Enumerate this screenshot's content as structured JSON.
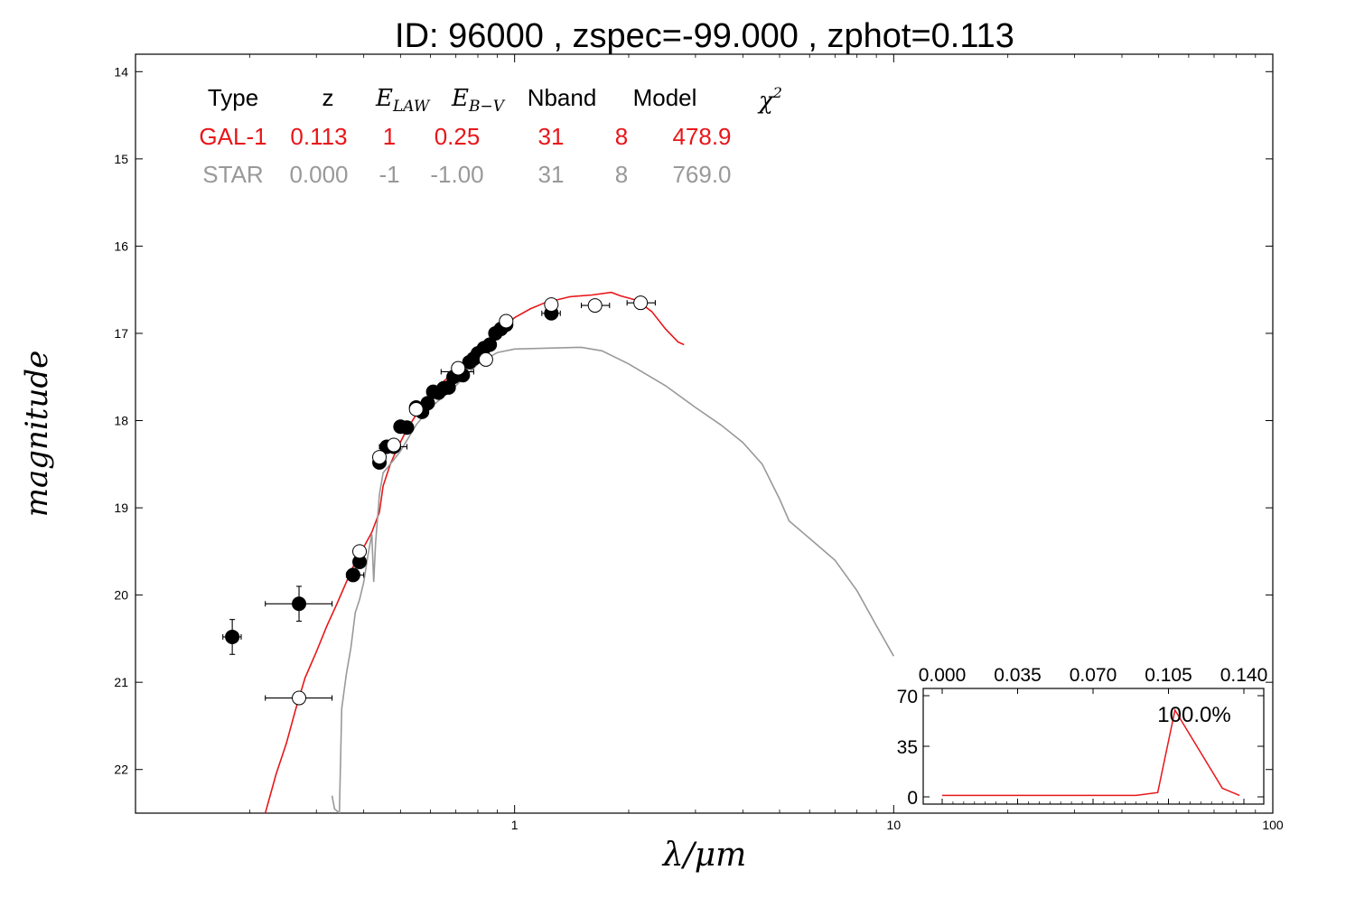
{
  "chart_data": [
    {
      "type": "scatter",
      "title": "ID:  96000 , zspec=-99.000 , zphot=0.113",
      "xlabel": "λ/μm",
      "ylabel": "magnitude",
      "xscale": "log",
      "xlim": [
        0.1,
        100
      ],
      "ylim": [
        22.5,
        13.8
      ],
      "y_inverted": true,
      "x_ticks": [
        "1",
        "10",
        "100"
      ],
      "y_ticks": [
        "14",
        "15",
        "16",
        "17",
        "18",
        "19",
        "20",
        "21",
        "22"
      ],
      "grid": false,
      "table": {
        "headers": [
          "Type",
          "z",
          "E_LAW",
          "E_B−V",
          "Nband",
          "Model",
          "χ²"
        ],
        "rows": [
          {
            "name": "GAL-1",
            "color": "#e8161a",
            "cells": [
              "GAL-1",
              "0.113",
              "1",
              "0.25",
              "31",
              "8",
              "478.9"
            ]
          },
          {
            "name": "STAR",
            "color": "#999999",
            "cells": [
              "STAR",
              "0.000",
              "-1",
              "-1.00",
              "31",
              "8",
              "769.0"
            ]
          }
        ]
      },
      "series": [
        {
          "name": "GAL-1",
          "kind": "line",
          "color": "#e8161a",
          "points": [
            [
              0.22,
              22.5
            ],
            [
              0.235,
              22.05
            ],
            [
              0.25,
              21.7
            ],
            [
              0.265,
              21.3
            ],
            [
              0.28,
              20.95
            ],
            [
              0.3,
              20.65
            ],
            [
              0.32,
              20.35
            ],
            [
              0.34,
              20.1
            ],
            [
              0.36,
              19.85
            ],
            [
              0.38,
              19.62
            ],
            [
              0.4,
              19.45
            ],
            [
              0.42,
              19.28
            ],
            [
              0.44,
              19.05
            ],
            [
              0.45,
              18.75
            ],
            [
              0.47,
              18.5
            ],
            [
              0.49,
              18.32
            ],
            [
              0.52,
              18.1
            ],
            [
              0.56,
              17.88
            ],
            [
              0.6,
              17.72
            ],
            [
              0.65,
              17.55
            ],
            [
              0.7,
              17.42
            ],
            [
              0.75,
              17.3
            ],
            [
              0.8,
              17.2
            ],
            [
              0.85,
              17.1
            ],
            [
              0.9,
              16.98
            ],
            [
              0.95,
              16.9
            ],
            [
              1.0,
              16.82
            ],
            [
              1.1,
              16.72
            ],
            [
              1.2,
              16.65
            ],
            [
              1.4,
              16.58
            ],
            [
              1.6,
              16.56
            ],
            [
              1.8,
              16.53
            ],
            [
              1.9,
              16.57
            ],
            [
              2.1,
              16.62
            ],
            [
              2.3,
              16.75
            ],
            [
              2.5,
              16.95
            ],
            [
              2.7,
              17.1
            ],
            [
              2.8,
              17.13
            ]
          ]
        },
        {
          "name": "STAR",
          "kind": "line",
          "color": "#999999",
          "points": [
            [
              0.33,
              22.3
            ],
            [
              0.335,
              22.45
            ],
            [
              0.345,
              22.5
            ],
            [
              0.35,
              21.3
            ],
            [
              0.36,
              20.9
            ],
            [
              0.37,
              20.6
            ],
            [
              0.38,
              20.2
            ],
            [
              0.39,
              20.05
            ],
            [
              0.4,
              19.85
            ],
            [
              0.41,
              19.55
            ],
            [
              0.42,
              19.3
            ],
            [
              0.425,
              19.85
            ],
            [
              0.43,
              19.4
            ],
            [
              0.44,
              18.85
            ],
            [
              0.45,
              18.6
            ],
            [
              0.48,
              18.45
            ],
            [
              0.5,
              18.35
            ],
            [
              0.55,
              18.05
            ],
            [
              0.6,
              17.85
            ],
            [
              0.7,
              17.6
            ],
            [
              0.8,
              17.35
            ],
            [
              0.9,
              17.22
            ],
            [
              1.0,
              17.18
            ],
            [
              1.2,
              17.17
            ],
            [
              1.5,
              17.16
            ],
            [
              1.7,
              17.2
            ],
            [
              2.0,
              17.35
            ],
            [
              2.5,
              17.6
            ],
            [
              3.0,
              17.85
            ],
            [
              3.5,
              18.05
            ],
            [
              4.0,
              18.25
            ],
            [
              4.5,
              18.5
            ],
            [
              5.0,
              18.9
            ],
            [
              5.3,
              19.15
            ],
            [
              6.0,
              19.35
            ],
            [
              7.0,
              19.6
            ],
            [
              8.0,
              19.95
            ],
            [
              9.0,
              20.35
            ],
            [
              10.0,
              20.7
            ]
          ]
        },
        {
          "name": "observed",
          "kind": "points-filled",
          "color": "#000000",
          "points": [
            {
              "x": 0.18,
              "y": 20.48,
              "xerr": [
                0.17,
                0.19
              ],
              "yerr": 0.2
            },
            {
              "x": 0.27,
              "y": 20.1,
              "xerr": [
                0.22,
                0.33
              ],
              "yerr": 0.2
            },
            {
              "x": 0.375,
              "y": 19.77,
              "xerr": [
                0.36,
                0.4
              ],
              "yerr": 0.05
            },
            {
              "x": 0.39,
              "y": 19.62,
              "xerr": [
                0.38,
                0.4
              ],
              "yerr": 0.05
            },
            {
              "x": 0.44,
              "y": 18.48,
              "xerr": [
                0.43,
                0.45
              ],
              "yerr": 0.05
            },
            {
              "x": 0.46,
              "y": 18.3,
              "xerr": [
                0.44,
                0.52
              ],
              "yerr": 0.05
            },
            {
              "x": 0.48,
              "y": 18.3,
              "xerr": [
                0.46,
                0.5
              ],
              "yerr": 0.05
            },
            {
              "x": 0.5,
              "y": 18.07,
              "xerr": [
                0.49,
                0.51
              ],
              "yerr": 0.05
            },
            {
              "x": 0.52,
              "y": 18.08,
              "xerr": [
                0.51,
                0.53
              ],
              "yerr": 0.05
            },
            {
              "x": 0.55,
              "y": 17.85,
              "xerr": [
                0.54,
                0.56
              ],
              "yerr": 0.05
            },
            {
              "x": 0.57,
              "y": 17.9,
              "xerr": [
                0.56,
                0.58
              ],
              "yerr": 0.05
            },
            {
              "x": 0.59,
              "y": 17.8,
              "xerr": [
                0.58,
                0.6
              ],
              "yerr": 0.05
            },
            {
              "x": 0.61,
              "y": 17.67,
              "xerr": [
                0.6,
                0.62
              ],
              "yerr": 0.05
            },
            {
              "x": 0.63,
              "y": 17.68,
              "xerr": [
                0.62,
                0.64
              ],
              "yerr": 0.05
            },
            {
              "x": 0.65,
              "y": 17.63,
              "xerr": [
                0.64,
                0.66
              ],
              "yerr": 0.05
            },
            {
              "x": 0.67,
              "y": 17.62,
              "xerr": [
                0.66,
                0.68
              ],
              "yerr": 0.05
            },
            {
              "x": 0.69,
              "y": 17.5,
              "xerr": [
                0.68,
                0.7
              ],
              "yerr": 0.05
            },
            {
              "x": 0.71,
              "y": 17.44,
              "xerr": [
                0.64,
                0.78
              ],
              "yerr": 0.05
            },
            {
              "x": 0.73,
              "y": 17.48,
              "xerr": [
                0.72,
                0.74
              ],
              "yerr": 0.05
            },
            {
              "x": 0.76,
              "y": 17.33,
              "xerr": [
                0.75,
                0.77
              ],
              "yerr": 0.05
            },
            {
              "x": 0.78,
              "y": 17.29,
              "xerr": [
                0.77,
                0.79
              ],
              "yerr": 0.05
            },
            {
              "x": 0.8,
              "y": 17.23,
              "xerr": [
                0.79,
                0.81
              ],
              "yerr": 0.05
            },
            {
              "x": 0.83,
              "y": 17.17,
              "xerr": [
                0.82,
                0.84
              ],
              "yerr": 0.05
            },
            {
              "x": 0.86,
              "y": 17.13,
              "xerr": [
                0.85,
                0.87
              ],
              "yerr": 0.05
            },
            {
              "x": 0.89,
              "y": 17.0,
              "xerr": [
                0.88,
                0.9
              ],
              "yerr": 0.05
            },
            {
              "x": 0.92,
              "y": 16.95,
              "xerr": [
                0.91,
                0.93
              ],
              "yerr": 0.05
            },
            {
              "x": 0.95,
              "y": 16.9,
              "xerr": [
                0.94,
                0.96
              ],
              "yerr": 0.05
            },
            {
              "x": 1.25,
              "y": 16.77,
              "xerr": [
                1.18,
                1.32
              ],
              "yerr": 0.07
            }
          ]
        },
        {
          "name": "model",
          "kind": "points-open",
          "color": "#000000",
          "points": [
            {
              "x": 0.27,
              "y": 21.18,
              "xerr": [
                0.22,
                0.33
              ]
            },
            {
              "x": 0.39,
              "y": 19.5
            },
            {
              "x": 0.44,
              "y": 18.42
            },
            {
              "x": 0.48,
              "y": 18.28
            },
            {
              "x": 0.55,
              "y": 17.87
            },
            {
              "x": 0.71,
              "y": 17.4
            },
            {
              "x": 0.84,
              "y": 17.3
            },
            {
              "x": 0.95,
              "y": 16.86
            },
            {
              "x": 1.25,
              "y": 16.67
            },
            {
              "x": 1.63,
              "y": 16.68,
              "xerr": [
                1.5,
                1.78
              ]
            },
            {
              "x": 2.15,
              "y": 16.65,
              "xerr": [
                1.98,
                2.35
              ]
            }
          ]
        }
      ]
    },
    {
      "type": "line",
      "title": "",
      "xlim": [
        0.0,
        0.14
      ],
      "ylim": [
        -5,
        75
      ],
      "x_ticks": [
        "0.000",
        "0.035",
        "0.070",
        "0.105",
        "0.140"
      ],
      "y_ticks": [
        "0",
        "35",
        "70"
      ],
      "annotation": "100.0%",
      "series": [
        {
          "name": "",
          "color": "#e8161a",
          "x": [
            0.0,
            0.09,
            0.1,
            0.108,
            0.13,
            0.138
          ],
          "y": [
            1,
            1,
            3,
            60,
            6,
            1
          ]
        }
      ]
    }
  ]
}
